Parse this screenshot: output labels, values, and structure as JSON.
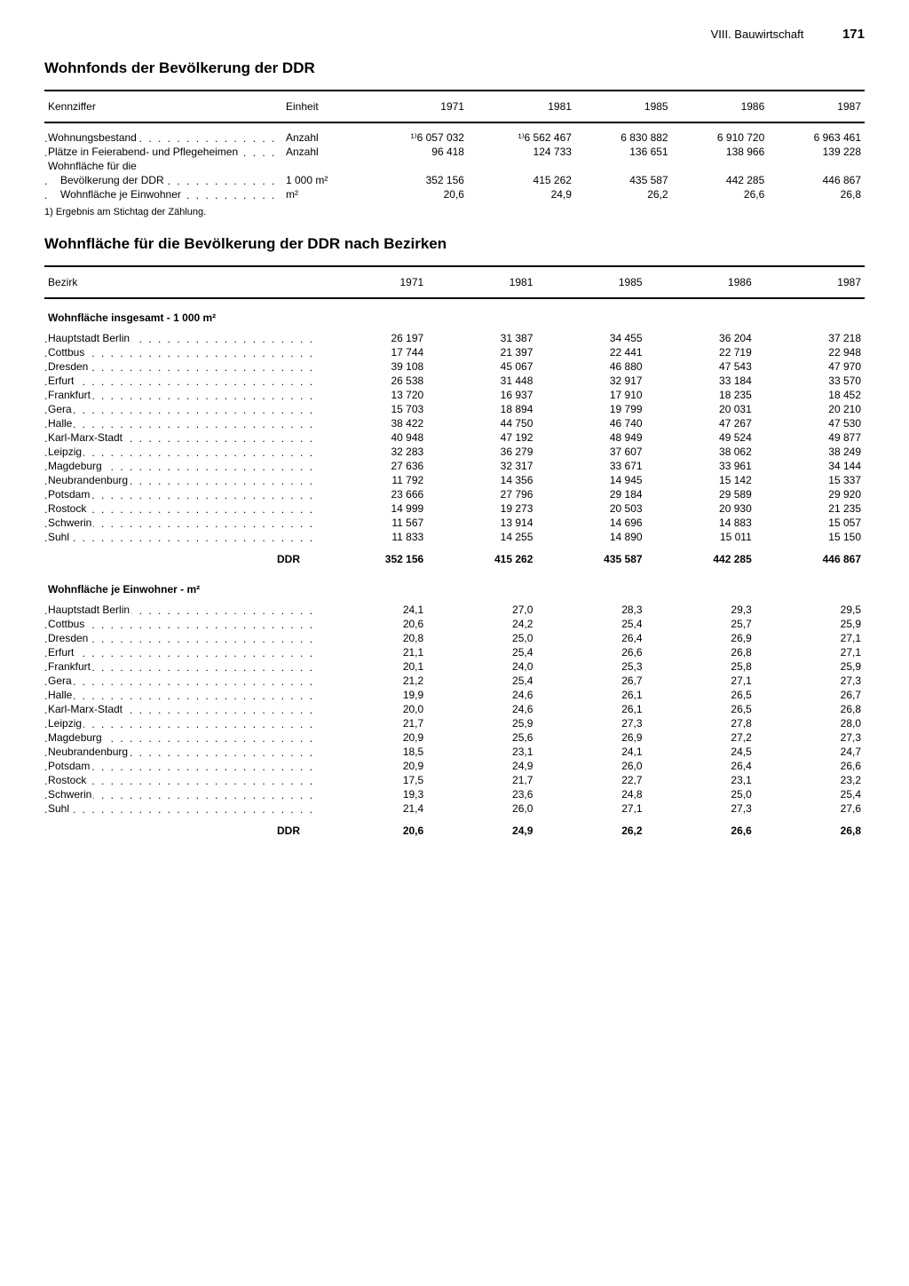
{
  "header": {
    "section": "VIII. Bauwirtschaft",
    "page": "171"
  },
  "table1": {
    "title": "Wohnfonds der Bevölkerung der DDR",
    "columns": [
      "Kennziffer",
      "Einheit",
      "1971",
      "1981",
      "1985",
      "1986",
      "1987"
    ],
    "rows": [
      {
        "label": "Wohnungsbestand",
        "unit": "Anzahl",
        "vals": [
          "¹⁾6 057 032",
          "¹⁾6 562 467",
          "6 830 882",
          "6 910 720",
          "6 963 461"
        ]
      },
      {
        "label": "Plätze in Feierabend- und Pflegeheimen",
        "unit": "Anzahl",
        "vals": [
          "96 418",
          "124 733",
          "136 651",
          "138 966",
          "139 228"
        ]
      },
      {
        "label": "Wohnfläche für die",
        "unit": "",
        "vals": [
          "",
          "",
          "",
          "",
          ""
        ],
        "nodots": true
      },
      {
        "label": "Bevölkerung der DDR",
        "unit": "1 000 m²",
        "vals": [
          "352 156",
          "415 262",
          "435 587",
          "442 285",
          "446 867"
        ],
        "indent": true
      },
      {
        "label": "Wohnfläche je Einwohner",
        "unit": "m²",
        "vals": [
          "20,6",
          "24,9",
          "26,2",
          "26,6",
          "26,8"
        ],
        "indent": true
      }
    ],
    "footnote": "1) Ergebnis am Stichtag der Zählung."
  },
  "table2": {
    "title": "Wohnfläche für die Bevölkerung der DDR nach Bezirken",
    "columns": [
      "Bezirk",
      "1971",
      "1981",
      "1985",
      "1986",
      "1987"
    ],
    "sections": [
      {
        "subhead": "Wohnfläche insgesamt - 1 000 m²",
        "rows": [
          {
            "label": "Hauptstadt Berlin",
            "vals": [
              "26 197",
              "31 387",
              "34 455",
              "36 204",
              "37 218"
            ]
          },
          {
            "label": "Cottbus",
            "vals": [
              "17 744",
              "21 397",
              "22 441",
              "22 719",
              "22 948"
            ]
          },
          {
            "label": "Dresden",
            "vals": [
              "39 108",
              "45 067",
              "46 880",
              "47 543",
              "47 970"
            ]
          },
          {
            "label": "Erfurt",
            "vals": [
              "26 538",
              "31 448",
              "32 917",
              "33 184",
              "33 570"
            ]
          },
          {
            "label": "Frankfurt",
            "vals": [
              "13 720",
              "16 937",
              "17 910",
              "18 235",
              "18 452"
            ]
          },
          {
            "label": "Gera",
            "vals": [
              "15 703",
              "18 894",
              "19 799",
              "20 031",
              "20 210"
            ]
          },
          {
            "label": "Halle",
            "vals": [
              "38 422",
              "44 750",
              "46 740",
              "47 267",
              "47 530"
            ]
          },
          {
            "label": "Karl-Marx-Stadt",
            "vals": [
              "40 948",
              "47 192",
              "48 949",
              "49 524",
              "49 877"
            ]
          },
          {
            "label": "Leipzig",
            "vals": [
              "32 283",
              "36 279",
              "37 607",
              "38 062",
              "38 249"
            ]
          },
          {
            "label": "Magdeburg",
            "vals": [
              "27 636",
              "32 317",
              "33 671",
              "33 961",
              "34 144"
            ]
          },
          {
            "label": "Neubrandenburg",
            "vals": [
              "11 792",
              "14 356",
              "14 945",
              "15 142",
              "15 337"
            ]
          },
          {
            "label": "Potsdam",
            "vals": [
              "23 666",
              "27 796",
              "29 184",
              "29 589",
              "29 920"
            ]
          },
          {
            "label": "Rostock",
            "vals": [
              "14 999",
              "19 273",
              "20 503",
              "20 930",
              "21 235"
            ]
          },
          {
            "label": "Schwerin",
            "vals": [
              "11 567",
              "13 914",
              "14 696",
              "14 883",
              "15 057"
            ]
          },
          {
            "label": "Suhl",
            "vals": [
              "11 833",
              "14 255",
              "14 890",
              "15 011",
              "15 150"
            ]
          }
        ],
        "total": {
          "label": "DDR",
          "vals": [
            "352 156",
            "415 262",
            "435 587",
            "442 285",
            "446 867"
          ]
        }
      },
      {
        "subhead": "Wohnfläche je Einwohner - m²",
        "rows": [
          {
            "label": "Hauptstadt Berlin",
            "vals": [
              "24,1",
              "27,0",
              "28,3",
              "29,3",
              "29,5"
            ]
          },
          {
            "label": "Cottbus",
            "vals": [
              "20,6",
              "24,2",
              "25,4",
              "25,7",
              "25,9"
            ]
          },
          {
            "label": "Dresden",
            "vals": [
              "20,8",
              "25,0",
              "26,4",
              "26,9",
              "27,1"
            ]
          },
          {
            "label": "Erfurt",
            "vals": [
              "21,1",
              "25,4",
              "26,6",
              "26,8",
              "27,1"
            ]
          },
          {
            "label": "Frankfurt",
            "vals": [
              "20,1",
              "24,0",
              "25,3",
              "25,8",
              "25,9"
            ]
          },
          {
            "label": "Gera",
            "vals": [
              "21,2",
              "25,4",
              "26,7",
              "27,1",
              "27,3"
            ]
          },
          {
            "label": "Halle",
            "vals": [
              "19,9",
              "24,6",
              "26,1",
              "26,5",
              "26,7"
            ]
          },
          {
            "label": "Karl-Marx-Stadt",
            "vals": [
              "20,0",
              "24,6",
              "26,1",
              "26,5",
              "26,8"
            ]
          },
          {
            "label": "Leipzig",
            "vals": [
              "21,7",
              "25,9",
              "27,3",
              "27,8",
              "28,0"
            ]
          },
          {
            "label": "Magdeburg",
            "vals": [
              "20,9",
              "25,6",
              "26,9",
              "27,2",
              "27,3"
            ]
          },
          {
            "label": "Neubrandenburg",
            "vals": [
              "18,5",
              "23,1",
              "24,1",
              "24,5",
              "24,7"
            ]
          },
          {
            "label": "Potsdam",
            "vals": [
              "20,9",
              "24,9",
              "26,0",
              "26,4",
              "26,6"
            ]
          },
          {
            "label": "Rostock",
            "vals": [
              "17,5",
              "21,7",
              "22,7",
              "23,1",
              "23,2"
            ]
          },
          {
            "label": "Schwerin",
            "vals": [
              "19,3",
              "23,6",
              "24,8",
              "25,0",
              "25,4"
            ]
          },
          {
            "label": "Suhl",
            "vals": [
              "21,4",
              "26,0",
              "27,1",
              "27,3",
              "27,6"
            ]
          }
        ],
        "total": {
          "label": "DDR",
          "vals": [
            "20,6",
            "24,9",
            "26,2",
            "26,6",
            "26,8"
          ]
        }
      }
    ]
  }
}
